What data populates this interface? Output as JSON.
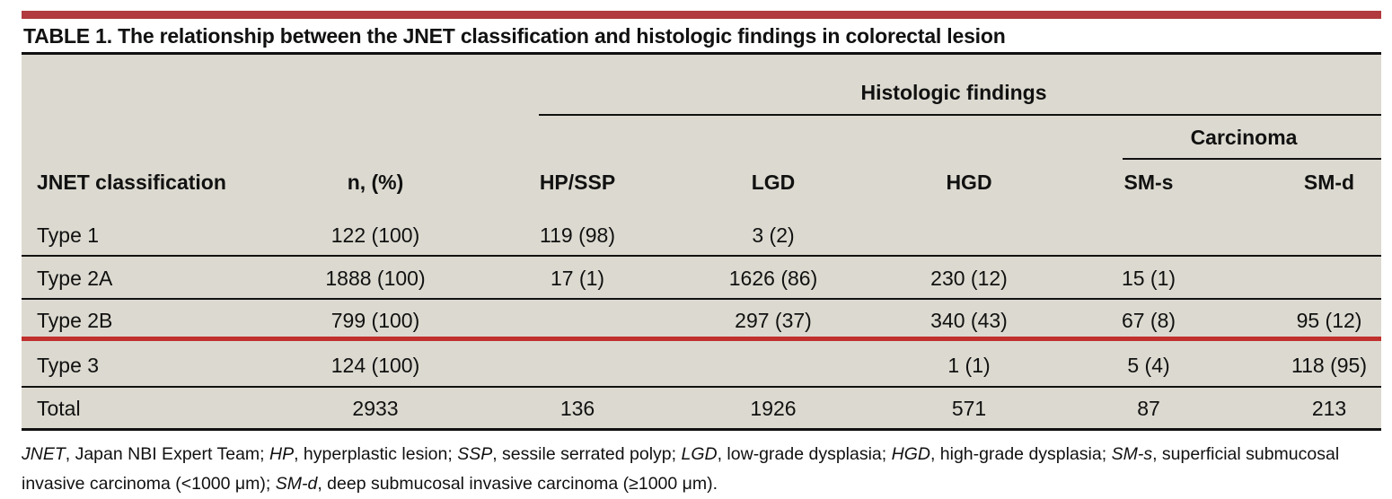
{
  "title": "TABLE 1. The relationship between the JNET classification and histologic findings in colorectal lesion",
  "headers": {
    "group": "Histologic findings",
    "subgroup": "Carcinoma",
    "columns": [
      "JNET classification",
      "n, (%)",
      "HP/SSP",
      "LGD",
      "HGD",
      "SM-s",
      "SM-d"
    ]
  },
  "rows": [
    {
      "label": "Type 1",
      "n": "122 (100)",
      "hp_ssp": "119 (98)",
      "lgd": "3 (2)",
      "hgd": "",
      "sms": "",
      "smd": ""
    },
    {
      "label": "Type 2A",
      "n": "1888 (100)",
      "hp_ssp": "17 (1)",
      "lgd": "1626 (86)",
      "hgd": "230 (12)",
      "sms": "15 (1)",
      "smd": ""
    },
    {
      "label": "Type 2B",
      "n": "799 (100)",
      "hp_ssp": "",
      "lgd": "297 (37)",
      "hgd": "340 (43)",
      "sms": "67 (8)",
      "smd": "95 (12)"
    },
    {
      "label": "Type 3",
      "n": "124 (100)",
      "hp_ssp": "",
      "lgd": "",
      "hgd": "1 (1)",
      "sms": "5 (4)",
      "smd": "118 (95)"
    },
    {
      "label": "Total",
      "n": "2933",
      "hp_ssp": "136",
      "lgd": "1926",
      "hgd": "571",
      "sms": "87",
      "smd": "213"
    }
  ],
  "footnote": {
    "parts": [
      {
        "abbr": "JNET",
        "text": ", Japan NBI Expert Team; "
      },
      {
        "abbr": "HP",
        "text": ", hyperplastic lesion; "
      },
      {
        "abbr": "SSP",
        "text": ", sessile serrated polyp; "
      },
      {
        "abbr": "LGD",
        "text": ", low-grade dysplasia; "
      },
      {
        "abbr": "HGD",
        "text": ", high-grade dysplasia; "
      },
      {
        "abbr": "SM-s",
        "text": ", superficial submucosal invasive carcinoma (<1000 μm); "
      },
      {
        "abbr": "SM-d",
        "text": ", deep submucosal invasive carcinoma (≥1000 μm)."
      }
    ]
  },
  "colors": {
    "accent_bar": "#b03a3e",
    "table_bg": "#dcdad0",
    "highlight_rule": "#c0302c"
  }
}
